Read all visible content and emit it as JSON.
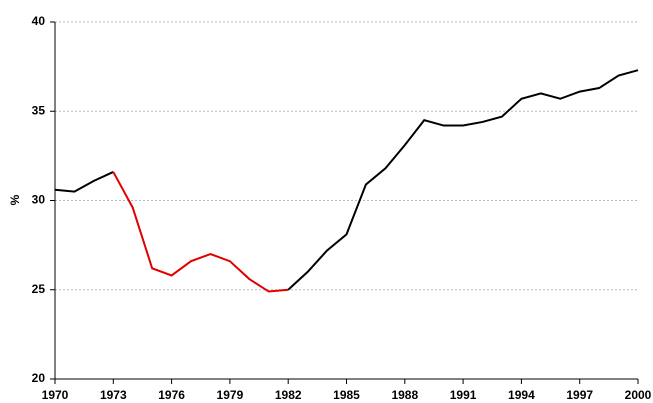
{
  "chart_data": {
    "type": "line",
    "y_label": "%",
    "x": [
      1970,
      1971,
      1972,
      1973,
      1974,
      1975,
      1976,
      1977,
      1978,
      1979,
      1980,
      1981,
      1982,
      1983,
      1984,
      1985,
      1986,
      1987,
      1988,
      1989,
      1990,
      1991,
      1992,
      1993,
      1994,
      1995,
      1996,
      1997,
      1998,
      1999,
      2000
    ],
    "series": [
      {
        "color": "#000000",
        "values": [
          30.6,
          30.5,
          31.1,
          31.6,
          null,
          null,
          null,
          null,
          null,
          null,
          null,
          null,
          25.0,
          26.0,
          27.2,
          28.1,
          30.9,
          31.8,
          33.1,
          34.5,
          34.2,
          34.2,
          34.4,
          34.7,
          35.7,
          36.0,
          35.7,
          36.1,
          36.3,
          37.0,
          37.3
        ]
      },
      {
        "color": "#e00000",
        "values": [
          null,
          null,
          null,
          31.6,
          29.6,
          26.2,
          25.8,
          26.6,
          27.0,
          26.6,
          25.6,
          24.9,
          25.0,
          null,
          null,
          null,
          null,
          null,
          null,
          null,
          null,
          null,
          null,
          null,
          null,
          null,
          null,
          null,
          null,
          null,
          null
        ]
      }
    ],
    "xlim": [
      1970,
      2000
    ],
    "xticks": [
      1970,
      1973,
      1976,
      1979,
      1982,
      1985,
      1988,
      1991,
      1994,
      1997,
      2000
    ],
    "ylim": [
      20,
      40
    ],
    "yticks": [
      20,
      25,
      30,
      35,
      40
    ],
    "grid": true
  }
}
